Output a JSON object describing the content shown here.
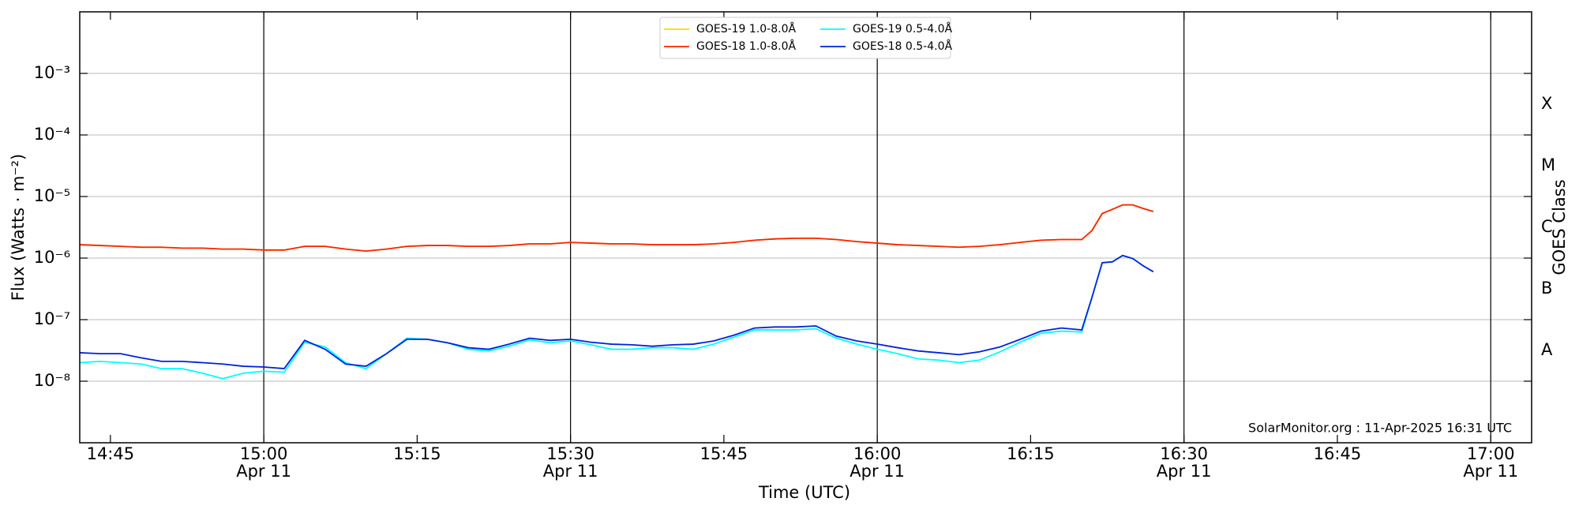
{
  "chart_data": {
    "type": "line",
    "ylabel": "Flux (Watts · m⁻²)",
    "xlabel": "Time (UTC)",
    "y2label": "GOES Class",
    "annotation": "SolarMonitor.org : 11-Apr-2025 16:31 UTC",
    "ylog": true,
    "grid": true,
    "legend": "top",
    "ylim": [
      1e-09,
      0.01
    ],
    "yticks": [
      {
        "value": 1e-08,
        "label": "10⁻⁸"
      },
      {
        "value": 1e-07,
        "label": "10⁻⁷"
      },
      {
        "value": 1e-06,
        "label": "10⁻⁶"
      },
      {
        "value": 1e-05,
        "label": "10⁻⁵"
      },
      {
        "value": 0.0001,
        "label": "10⁻⁴"
      },
      {
        "value": 0.001,
        "label": "10⁻³"
      }
    ],
    "goes_classes": [
      "A",
      "B",
      "C",
      "M",
      "X"
    ],
    "xlim": [
      "14:42",
      "17:04"
    ],
    "xticks": [
      {
        "value": "14:45",
        "label": "14:45"
      },
      {
        "value": "15:00",
        "label": "15:00",
        "date": "Apr 11"
      },
      {
        "value": "15:15",
        "label": "15:15"
      },
      {
        "value": "15:30",
        "label": "15:30",
        "date": "Apr 11"
      },
      {
        "value": "15:45",
        "label": "15:45"
      },
      {
        "value": "16:00",
        "label": "16:00",
        "date": "Apr 11"
      },
      {
        "value": "16:15",
        "label": "16:15"
      },
      {
        "value": "16:30",
        "label": "16:30",
        "date": "Apr 11"
      },
      {
        "value": "16:45",
        "label": "16:45"
      },
      {
        "value": "17:00",
        "label": "17:00",
        "date": "Apr 11"
      }
    ],
    "x": [
      "14:42",
      "14:44",
      "14:46",
      "14:48",
      "14:50",
      "14:52",
      "14:54",
      "14:56",
      "14:58",
      "15:00",
      "15:02",
      "15:04",
      "15:06",
      "15:08",
      "15:10",
      "15:12",
      "15:14",
      "15:16",
      "15:18",
      "15:20",
      "15:22",
      "15:24",
      "15:26",
      "15:28",
      "15:30",
      "15:32",
      "15:34",
      "15:36",
      "15:38",
      "15:40",
      "15:42",
      "15:44",
      "15:46",
      "15:48",
      "15:50",
      "15:52",
      "15:54",
      "15:56",
      "15:58",
      "16:00",
      "16:02",
      "16:04",
      "16:06",
      "16:08",
      "16:10",
      "16:12",
      "16:14",
      "16:16",
      "16:18",
      "16:20",
      "16:21",
      "16:22",
      "16:23",
      "16:24",
      "16:25",
      "16:26",
      "16:27"
    ],
    "series": [
      {
        "name": "GOES-19 1.0-8.0Å",
        "color": "#ffd700",
        "values": [
          1.65e-06,
          1.6e-06,
          1.55e-06,
          1.5e-06,
          1.5e-06,
          1.45e-06,
          1.45e-06,
          1.4e-06,
          1.4e-06,
          1.35e-06,
          1.35e-06,
          1.55e-06,
          1.55e-06,
          1.4e-06,
          1.3e-06,
          1.4e-06,
          1.55e-06,
          1.6e-06,
          1.6e-06,
          1.55e-06,
          1.55e-06,
          1.6e-06,
          1.7e-06,
          1.7e-06,
          1.8e-06,
          1.75e-06,
          1.7e-06,
          1.7e-06,
          1.65e-06,
          1.65e-06,
          1.65e-06,
          1.7e-06,
          1.8e-06,
          1.95e-06,
          2.05e-06,
          2.1e-06,
          2.1e-06,
          2e-06,
          1.85e-06,
          1.75e-06,
          1.65e-06,
          1.6e-06,
          1.55e-06,
          1.5e-06,
          1.55e-06,
          1.65e-06,
          1.8e-06,
          1.95e-06,
          2e-06,
          2e-06,
          2.8e-06,
          5.3e-06,
          6.2e-06,
          7.3e-06,
          7.3e-06,
          6.4e-06,
          5.7e-06
        ]
      },
      {
        "name": "GOES-18 1.0-8.0Å",
        "color": "#ff2200",
        "values": [
          1.65e-06,
          1.6e-06,
          1.55e-06,
          1.5e-06,
          1.5e-06,
          1.45e-06,
          1.45e-06,
          1.4e-06,
          1.4e-06,
          1.35e-06,
          1.35e-06,
          1.55e-06,
          1.55e-06,
          1.4e-06,
          1.3e-06,
          1.4e-06,
          1.55e-06,
          1.6e-06,
          1.6e-06,
          1.55e-06,
          1.55e-06,
          1.6e-06,
          1.7e-06,
          1.7e-06,
          1.8e-06,
          1.75e-06,
          1.7e-06,
          1.7e-06,
          1.65e-06,
          1.65e-06,
          1.65e-06,
          1.7e-06,
          1.8e-06,
          1.95e-06,
          2.05e-06,
          2.1e-06,
          2.1e-06,
          2e-06,
          1.85e-06,
          1.75e-06,
          1.65e-06,
          1.6e-06,
          1.55e-06,
          1.5e-06,
          1.55e-06,
          1.65e-06,
          1.8e-06,
          1.95e-06,
          2e-06,
          2e-06,
          2.8e-06,
          5.3e-06,
          6.2e-06,
          7.3e-06,
          7.3e-06,
          6.4e-06,
          5.7e-06
        ]
      },
      {
        "name": "GOES-19 0.5-4.0Å",
        "color": "#00ffff",
        "values": [
          2e-08,
          2.1e-08,
          2e-08,
          1.9e-08,
          1.6e-08,
          1.6e-08,
          1.35e-08,
          1.1e-08,
          1.35e-08,
          1.45e-08,
          1.4e-08,
          4.3e-08,
          3.6e-08,
          2e-08,
          1.6e-08,
          2.8e-08,
          5e-08,
          4.8e-08,
          4.2e-08,
          3.3e-08,
          3.1e-08,
          3.7e-08,
          4.7e-08,
          4.2e-08,
          4.5e-08,
          3.9e-08,
          3.3e-08,
          3.3e-08,
          3.5e-08,
          3.5e-08,
          3.3e-08,
          4e-08,
          5.2e-08,
          6.8e-08,
          6.8e-08,
          6.8e-08,
          7.1e-08,
          5e-08,
          4e-08,
          3.3e-08,
          2.8e-08,
          2.3e-08,
          2.2e-08,
          2e-08,
          2.2e-08,
          3e-08,
          4.3e-08,
          6e-08,
          6.5e-08,
          6.3e-08,
          2.3e-07,
          8.4e-07,
          8.7e-07,
          1.1e-06,
          9.8e-07,
          7.5e-07,
          6e-07
        ]
      },
      {
        "name": "GOES-18 0.5-4.0Å",
        "color": "#0022dd",
        "values": [
          2.9e-08,
          2.8e-08,
          2.8e-08,
          2.4e-08,
          2.1e-08,
          2.1e-08,
          2e-08,
          1.9e-08,
          1.75e-08,
          1.7e-08,
          1.6e-08,
          4.6e-08,
          3.3e-08,
          1.9e-08,
          1.75e-08,
          2.8e-08,
          4.8e-08,
          4.8e-08,
          4.2e-08,
          3.5e-08,
          3.3e-08,
          4e-08,
          5e-08,
          4.6e-08,
          4.8e-08,
          4.3e-08,
          4e-08,
          3.9e-08,
          3.7e-08,
          3.9e-08,
          4e-08,
          4.5e-08,
          5.6e-08,
          7.3e-08,
          7.6e-08,
          7.6e-08,
          7.9e-08,
          5.4e-08,
          4.5e-08,
          4e-08,
          3.5e-08,
          3.1e-08,
          2.9e-08,
          2.7e-08,
          3e-08,
          3.6e-08,
          4.8e-08,
          6.5e-08,
          7.3e-08,
          6.8e-08,
          2.3e-07,
          8.4e-07,
          8.7e-07,
          1.1e-06,
          9.8e-07,
          7.5e-07,
          6e-07
        ]
      }
    ]
  }
}
